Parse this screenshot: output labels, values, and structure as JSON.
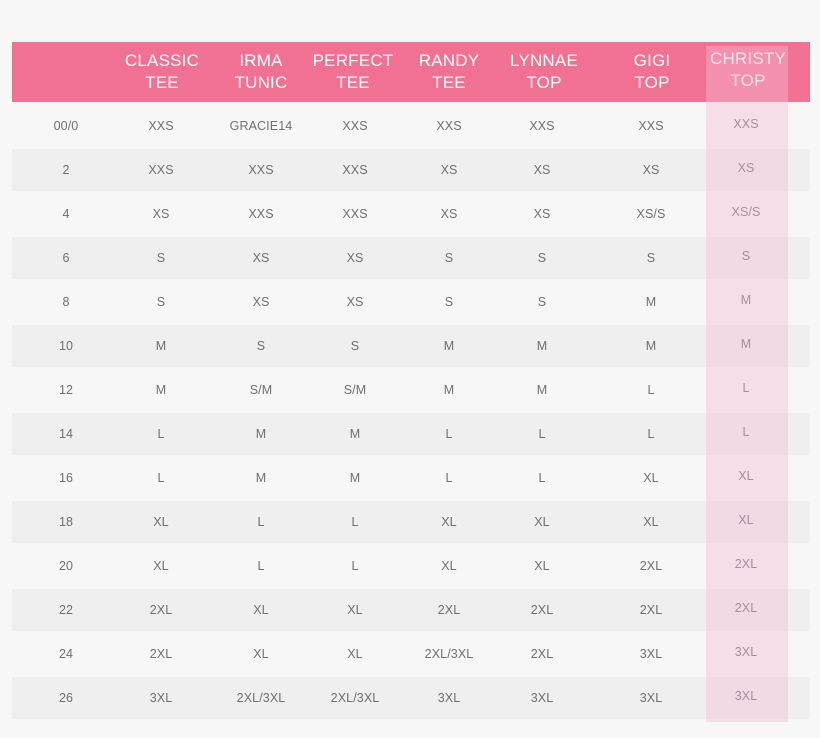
{
  "size_chart": {
    "headers": [
      "CLASSIC\nTEE",
      "IRMA\nTUNIC",
      "PERFECT\nTEE",
      "RANDY\nTEE",
      "LYNNAE\nTOP",
      "GIGI\nTOP",
      "CHRISTY\nTOP"
    ],
    "highlighted_header": "CHRISTY\nTOP",
    "rows": [
      {
        "size": "00/0",
        "values": [
          "XXS",
          "GRACIE14",
          "XXS",
          "XXS",
          "XXS",
          "XXS",
          "XXS"
        ]
      },
      {
        "size": "2",
        "values": [
          "XXS",
          "XXS",
          "XXS",
          "XS",
          "XS",
          "XS",
          "XS"
        ]
      },
      {
        "size": "4",
        "values": [
          "XS",
          "XXS",
          "XXS",
          "XS",
          "XS",
          "XS/S",
          "XS/S"
        ]
      },
      {
        "size": "6",
        "values": [
          "S",
          "XS",
          "XS",
          "S",
          "S",
          "S",
          "S"
        ]
      },
      {
        "size": "8",
        "values": [
          "S",
          "XS",
          "XS",
          "S",
          "S",
          "M",
          "M"
        ]
      },
      {
        "size": "10",
        "values": [
          "M",
          "S",
          "S",
          "M",
          "M",
          "M",
          "M"
        ]
      },
      {
        "size": "12",
        "values": [
          "M",
          "S/M",
          "S/M",
          "M",
          "M",
          "L",
          "L"
        ]
      },
      {
        "size": "14",
        "values": [
          "L",
          "M",
          "M",
          "L",
          "L",
          "L",
          "L"
        ]
      },
      {
        "size": "16",
        "values": [
          "L",
          "M",
          "M",
          "L",
          "L",
          "XL",
          "XL"
        ]
      },
      {
        "size": "18",
        "values": [
          "XL",
          "L",
          "L",
          "XL",
          "XL",
          "XL",
          "XL"
        ]
      },
      {
        "size": "20",
        "values": [
          "XL",
          "L",
          "L",
          "XL",
          "XL",
          "2XL",
          "2XL"
        ]
      },
      {
        "size": "22",
        "values": [
          "2XL",
          "XL",
          "XL",
          "2XL",
          "2XL",
          "2XL",
          "2XL"
        ]
      },
      {
        "size": "24",
        "values": [
          "2XL",
          "XL",
          "XL",
          "2XL/3XL",
          "2XL",
          "3XL",
          "3XL"
        ]
      },
      {
        "size": "26",
        "values": [
          "3XL",
          "2XL/3XL",
          "2XL/3XL",
          "3XL",
          "3XL",
          "3XL",
          "3XL"
        ]
      }
    ]
  },
  "colors": {
    "header_background": "#f17192",
    "header_text": "#ffffff",
    "highlight_column": "#f4bcd5",
    "row_shaded": "#efefef",
    "page_background": "#f7f7f7",
    "cell_text": "#6f6f6f"
  }
}
